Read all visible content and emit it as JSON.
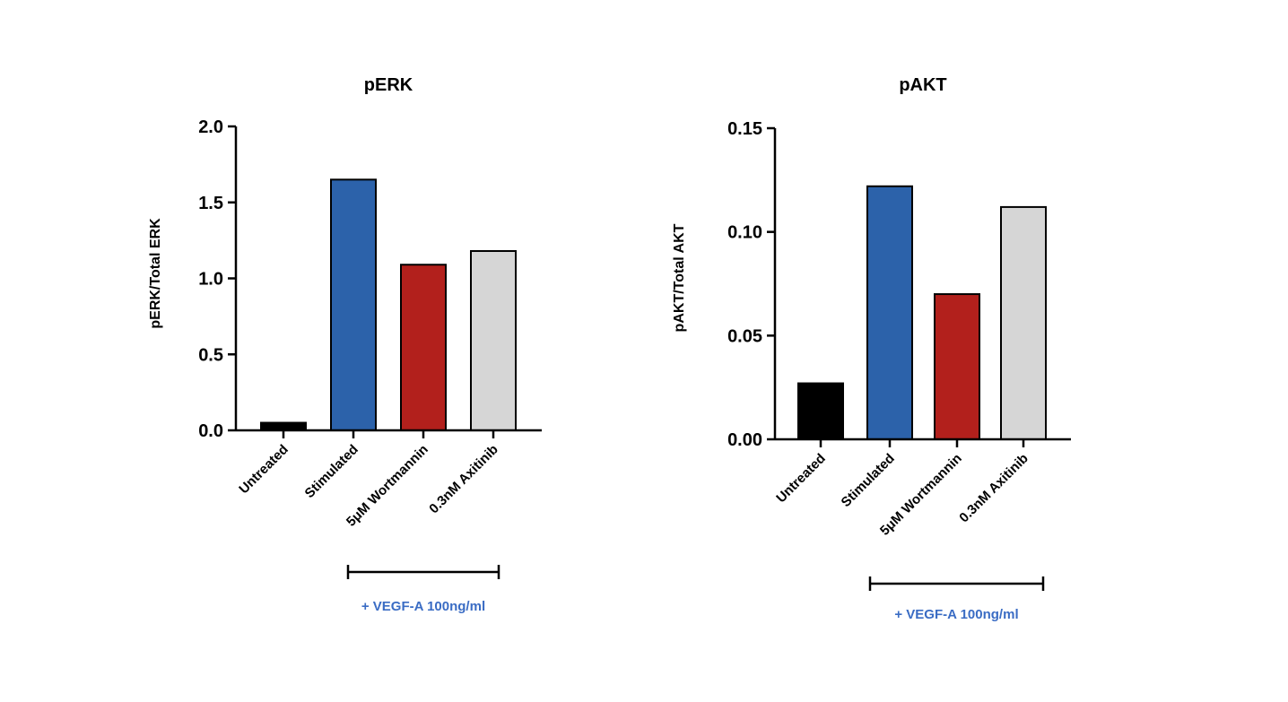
{
  "chart_data": [
    {
      "type": "bar",
      "title": "pERK",
      "xlabel": "",
      "ylabel": "pERK/Total ERK",
      "categories": [
        "Untreated",
        "Stimulated",
        "5μM Wortmannin",
        "0.3nM Axitinib"
      ],
      "values": [
        0.05,
        1.65,
        1.09,
        1.18
      ],
      "colors": [
        "#000000",
        "#2c62aa",
        "#b2201c",
        "#d6d6d6"
      ],
      "ylim": [
        0,
        2.0
      ],
      "yticks": [
        "0.0",
        "0.5",
        "1.0",
        "1.5",
        "2.0"
      ],
      "ytick_values": [
        0,
        0.5,
        1.0,
        1.5,
        2.0
      ],
      "grid": false,
      "annotation": {
        "text": "+ VEGF-A 100ng/ml",
        "color": "#3a6cc4",
        "spans": [
          "Stimulated",
          "0.3nM Axitinib"
        ]
      }
    },
    {
      "type": "bar",
      "title": "pAKT",
      "xlabel": "",
      "ylabel": "pAKT/Total AKT",
      "categories": [
        "Untreated",
        "Stimulated",
        "5μM Wortmannin",
        "0.3nM Axitinib"
      ],
      "values": [
        0.027,
        0.122,
        0.07,
        0.112
      ],
      "colors": [
        "#000000",
        "#2c62aa",
        "#b2201c",
        "#d6d6d6"
      ],
      "ylim": [
        0,
        0.15
      ],
      "yticks": [
        "0.00",
        "0.05",
        "0.10",
        "0.15"
      ],
      "ytick_values": [
        0,
        0.05,
        0.1,
        0.15
      ],
      "grid": false,
      "annotation": {
        "text": "+ VEGF-A 100ng/ml",
        "color": "#3a6cc4",
        "spans": [
          "Stimulated",
          "0.3nM Axitinib"
        ]
      }
    }
  ]
}
